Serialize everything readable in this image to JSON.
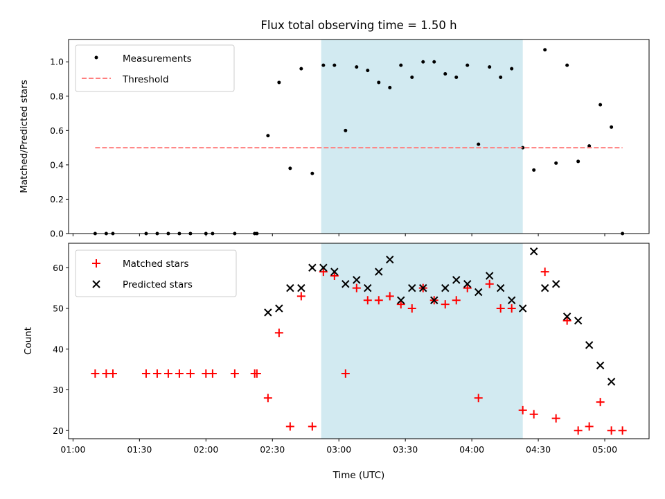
{
  "chart_data": [
    {
      "type": "scatter",
      "title": "Flux total observing time = 1.50 h",
      "xlabel": "",
      "ylabel": "Matched/Predicted stars",
      "xlim": [
        "00:58",
        "05:20"
      ],
      "ylim": [
        0,
        1.13
      ],
      "yticks": [
        "0.0",
        "0.2",
        "0.4",
        "0.6",
        "0.8",
        "1.0"
      ],
      "shaded_region": {
        "start": "02:52",
        "end": "04:23",
        "color": "#add8e6"
      },
      "legend_position": "upper-left",
      "series": [
        {
          "name": "Measurements",
          "marker": "dot",
          "color": "#000000",
          "x": [
            "01:10",
            "01:15",
            "01:18",
            "01:33",
            "01:38",
            "01:43",
            "01:48",
            "01:53",
            "02:00",
            "02:03",
            "02:13",
            "02:22",
            "02:23",
            "02:28",
            "02:33",
            "02:38",
            "02:43",
            "02:48",
            "02:53",
            "02:58",
            "03:03",
            "03:08",
            "03:13",
            "03:18",
            "03:23",
            "03:28",
            "03:33",
            "03:38",
            "03:43",
            "03:48",
            "03:53",
            "03:58",
            "04:03",
            "04:08",
            "04:13",
            "04:18",
            "04:23",
            "04:28",
            "04:33",
            "04:38",
            "04:43",
            "04:48",
            "04:53",
            "04:58",
            "05:03",
            "05:08"
          ],
          "y": [
            0,
            0,
            0,
            0,
            0,
            0,
            0,
            0,
            0,
            0,
            0,
            0,
            0,
            0.57,
            0.88,
            0.38,
            0.96,
            0.35,
            0.98,
            0.98,
            0.6,
            0.97,
            0.95,
            0.88,
            0.85,
            0.98,
            0.91,
            1.0,
            1.0,
            0.93,
            0.91,
            0.98,
            0.52,
            0.97,
            0.91,
            0.96,
            0.5,
            0.37,
            1.07,
            0.41,
            0.98,
            0.42,
            0.51,
            0.75,
            0.62,
            0
          ]
        },
        {
          "name": "Threshold",
          "marker": "dashed-line",
          "color": "#ff7f7f",
          "x": [
            "01:10",
            "05:08"
          ],
          "y": [
            0.5,
            0.5
          ]
        }
      ]
    },
    {
      "type": "scatter",
      "title": "",
      "xlabel": "Time (UTC)",
      "ylabel": "Count",
      "xlim": [
        "00:58",
        "05:20"
      ],
      "ylim": [
        18,
        66
      ],
      "yticks": [
        "20",
        "30",
        "40",
        "50",
        "60"
      ],
      "xticks": [
        "01:00",
        "01:30",
        "02:00",
        "02:30",
        "03:00",
        "03:30",
        "04:00",
        "04:30",
        "05:00"
      ],
      "shaded_region": {
        "start": "02:52",
        "end": "04:23",
        "color": "#add8e6"
      },
      "legend_position": "upper-left",
      "series": [
        {
          "name": "Matched stars",
          "marker": "plus",
          "color": "#ff0000",
          "x": [
            "01:10",
            "01:15",
            "01:18",
            "01:33",
            "01:38",
            "01:43",
            "01:48",
            "01:53",
            "02:00",
            "02:03",
            "02:13",
            "02:22",
            "02:23",
            "02:28",
            "02:33",
            "02:38",
            "02:43",
            "02:48",
            "02:53",
            "02:58",
            "03:03",
            "03:08",
            "03:13",
            "03:18",
            "03:23",
            "03:28",
            "03:33",
            "03:38",
            "03:43",
            "03:48",
            "03:53",
            "03:58",
            "04:03",
            "04:08",
            "04:13",
            "04:18",
            "04:23",
            "04:28",
            "04:33",
            "04:38",
            "04:43",
            "04:48",
            "04:53",
            "04:58",
            "05:03",
            "05:08"
          ],
          "y": [
            34,
            34,
            34,
            34,
            34,
            34,
            34,
            34,
            34,
            34,
            34,
            34,
            34,
            28,
            44,
            21,
            53,
            21,
            59,
            58,
            34,
            55,
            52,
            52,
            53,
            51,
            50,
            55,
            52,
            51,
            52,
            55,
            28,
            56,
            50,
            50,
            25,
            24,
            59,
            23,
            47,
            20,
            21,
            27,
            20,
            20
          ]
        },
        {
          "name": "Predicted stars",
          "marker": "x",
          "color": "#000000",
          "x": [
            "02:28",
            "02:33",
            "02:38",
            "02:43",
            "02:48",
            "02:53",
            "02:58",
            "03:03",
            "03:08",
            "03:13",
            "03:18",
            "03:23",
            "03:28",
            "03:33",
            "03:38",
            "03:43",
            "03:48",
            "03:53",
            "03:58",
            "04:03",
            "04:08",
            "04:13",
            "04:18",
            "04:23",
            "04:28",
            "04:33",
            "04:38",
            "04:43",
            "04:48",
            "04:53",
            "04:58",
            "05:03"
          ],
          "y": [
            49,
            50,
            55,
            55,
            60,
            60,
            59,
            56,
            57,
            55,
            59,
            62,
            52,
            55,
            55,
            52,
            55,
            57,
            56,
            54,
            58,
            55,
            52,
            50,
            64,
            55,
            56,
            48,
            47,
            41,
            36,
            32
          ]
        }
      ]
    }
  ]
}
